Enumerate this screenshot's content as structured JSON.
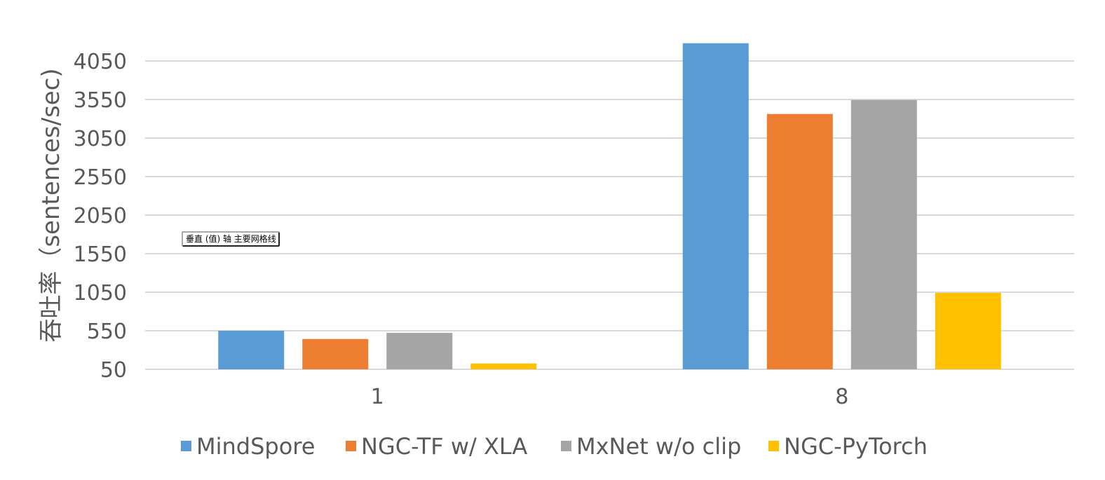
{
  "chart_data": {
    "type": "bar",
    "title": "",
    "xlabel": "",
    "ylabel": "吞吐率（sentences/sec)",
    "categories": [
      "1",
      "8"
    ],
    "yticks": [
      "50",
      "550",
      "1050",
      "1550",
      "2050",
      "2550",
      "3050",
      "3550",
      "4050"
    ],
    "ylim": [
      50,
      4300
    ],
    "grid": true,
    "legend_position": "bottom",
    "series": [
      {
        "name": "MindSpore",
        "color": "#5B9BD5",
        "values": [
          550,
          4280
        ]
      },
      {
        "name": "NGC-TF w/ XLA",
        "color": "#ED7D31",
        "values": [
          443,
          3362
        ]
      },
      {
        "name": "MxNet w/o clip",
        "color": "#A5A5A5",
        "values": [
          522,
          3544
        ]
      },
      {
        "name": "NGC-PyTorch",
        "color": "#FFC000",
        "values": [
          125,
          1042
        ]
      }
    ]
  },
  "tooltip": {
    "text": "垂直 (值) 轴 主要网格线"
  }
}
